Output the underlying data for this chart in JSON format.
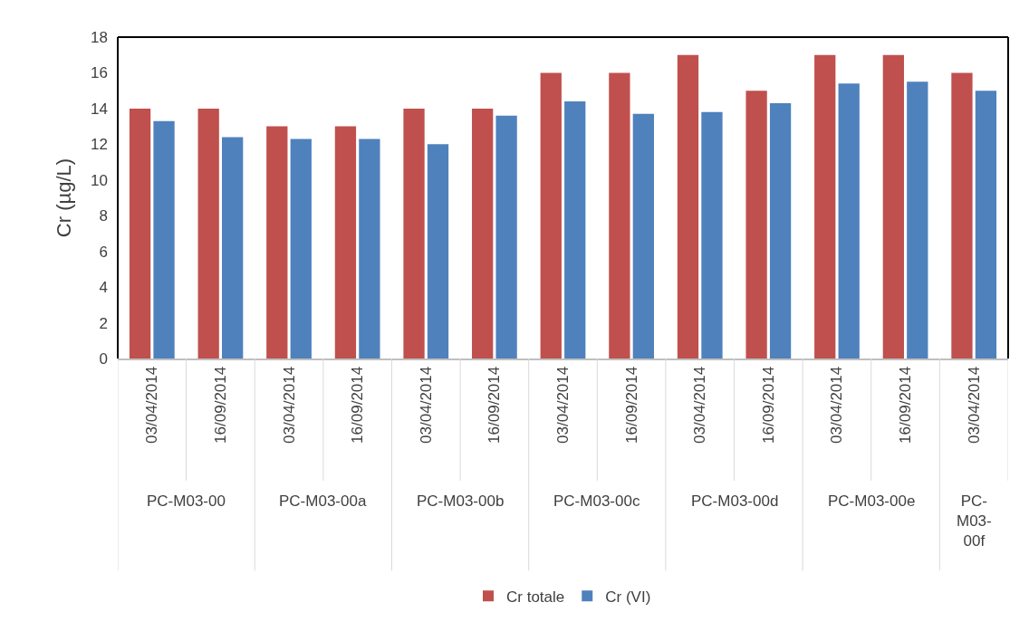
{
  "chart_data": {
    "type": "bar",
    "ylabel": "Cr (µg/L)",
    "categories": [
      "03/04/2014",
      "16/09/2014",
      "03/04/2014",
      "16/09/2014",
      "03/04/2014",
      "16/09/2014",
      "03/04/2014",
      "16/09/2014",
      "03/04/2014",
      "16/09/2014",
      "03/04/2014",
      "16/09/2014",
      "03/04/2014"
    ],
    "series": [
      {
        "name": "Cr totale",
        "color": "#c0504d",
        "values": [
          14,
          14,
          13,
          13,
          14,
          14,
          16,
          16,
          17,
          15,
          17,
          17,
          16
        ]
      },
      {
        "name": "Cr (VI)",
        "color": "#4f81bd",
        "values": [
          13.3,
          12.4,
          12.3,
          12.3,
          12.0,
          13.6,
          14.4,
          13.7,
          13.8,
          14.3,
          15.4,
          15.5,
          15.0
        ]
      }
    ],
    "annotations": [
      "PC-M03-00",
      "PC-M03-00a",
      "PC-M03-00b",
      "PC-M03-00c",
      "PC-M03-00d",
      "PC-M03-00e",
      "PC-M03-00f"
    ],
    "ylim": [
      0,
      18
    ],
    "yticks": [
      0,
      2,
      4,
      6,
      8,
      10,
      12,
      14,
      16,
      18
    ],
    "legend": "bottom"
  }
}
